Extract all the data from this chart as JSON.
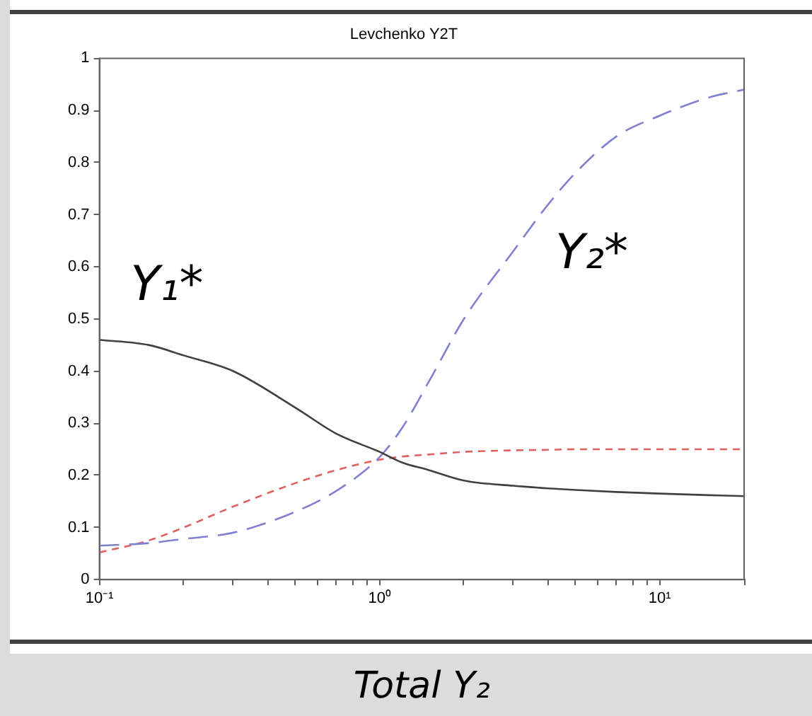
{
  "chart_data": {
    "type": "line",
    "title": "Levchenko Y2T",
    "xlabel": "Total Y₂",
    "log": "x",
    "grid": false,
    "legend": false,
    "marker": "none",
    "x": [
      0.1,
      0.15,
      0.2,
      0.3,
      0.5,
      0.7,
      1,
      1.2,
      1.5,
      2,
      3,
      4,
      5,
      7,
      10,
      15,
      20
    ],
    "xlim": [
      0.1,
      20
    ],
    "xticks": [
      {
        "value": 0.1,
        "label": "10⁻¹"
      },
      {
        "value": 0.2,
        "label": null
      },
      {
        "value": 0.3,
        "label": null
      },
      {
        "value": 0.4,
        "label": null
      },
      {
        "value": 0.5,
        "label": null
      },
      {
        "value": 0.6,
        "label": null
      },
      {
        "value": 0.7,
        "label": null
      },
      {
        "value": 0.8,
        "label": null
      },
      {
        "value": 0.9,
        "label": null
      },
      {
        "value": 1,
        "label": "10⁰"
      },
      {
        "value": 2,
        "label": null
      },
      {
        "value": 3,
        "label": null
      },
      {
        "value": 4,
        "label": null
      },
      {
        "value": 5,
        "label": null
      },
      {
        "value": 6,
        "label": null
      },
      {
        "value": 7,
        "label": null
      },
      {
        "value": 8,
        "label": null
      },
      {
        "value": 9,
        "label": null
      },
      {
        "value": 10,
        "label": "10¹"
      },
      {
        "value": 20,
        "label": null
      }
    ],
    "ylim": [
      0,
      1
    ],
    "yticks": [
      0,
      0.1,
      0.2,
      0.3,
      0.4,
      0.5,
      0.6,
      0.7,
      0.8,
      0.9,
      1
    ],
    "series": [
      {
        "name": "Y₁*",
        "color": "#404040",
        "line_style": "solid",
        "values": [
          0.46,
          0.45,
          0.43,
          0.4,
          0.33,
          0.28,
          0.245,
          0.225,
          0.21,
          0.19,
          0.18,
          0.175,
          0.172,
          0.168,
          0.165,
          0.162,
          0.16
        ]
      },
      {
        "name": "Y₂*",
        "color": "#8080d0",
        "line_style": "dashed",
        "values": [
          0.065,
          0.07,
          0.078,
          0.09,
          0.13,
          0.17,
          0.235,
          0.29,
          0.38,
          0.5,
          0.63,
          0.72,
          0.78,
          0.85,
          0.89,
          0.925,
          0.94
        ]
      },
      {
        "color": "#e06060",
        "line_style": "dotted",
        "values": [
          0.052,
          0.075,
          0.1,
          0.14,
          0.185,
          0.21,
          0.23,
          0.236,
          0.24,
          0.245,
          0.248,
          0.249,
          0.25,
          0.25,
          0.25,
          0.25,
          0.25
        ]
      }
    ]
  }
}
